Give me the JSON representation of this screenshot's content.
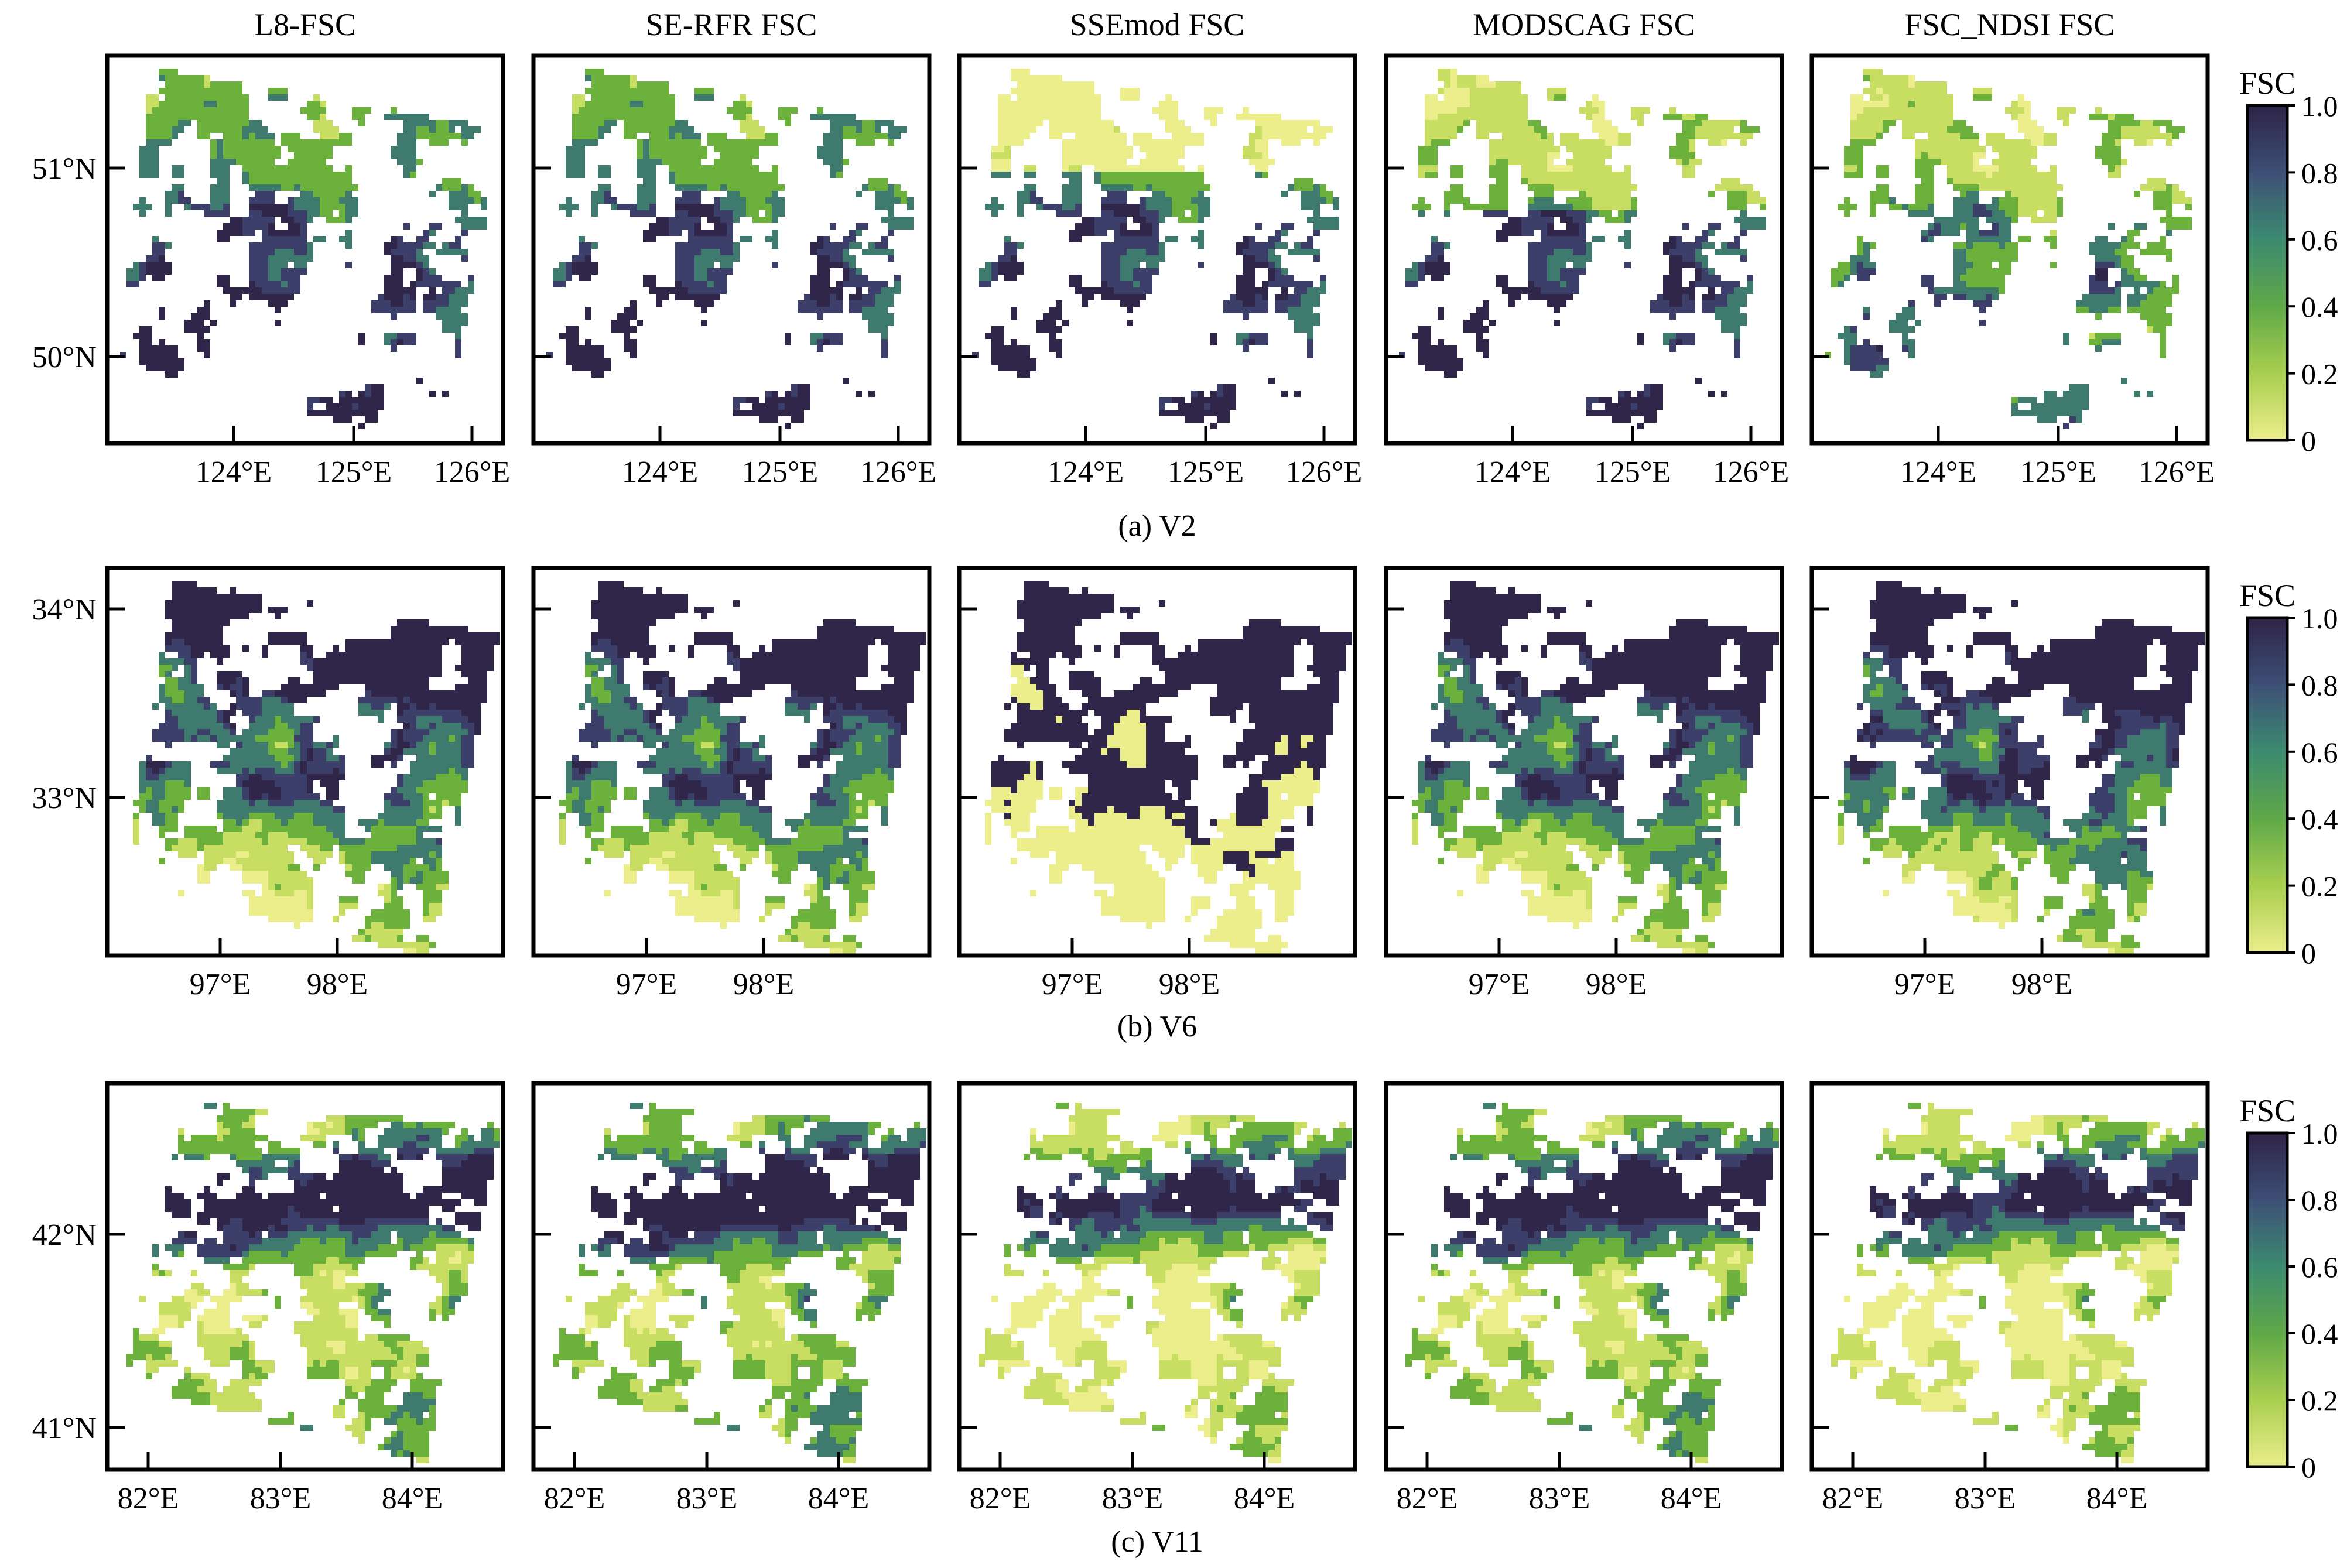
{
  "figure": {
    "column_titles": [
      "L8-FSC",
      "SE-RFR FSC",
      "SSEmod FSC",
      "MODSCAG FSC",
      "FSC_NDSI FSC"
    ],
    "colorbar": {
      "label": "FSC",
      "ticks": [
        "0",
        "0.2",
        "0.4",
        "0.6",
        "0.8",
        "1.0"
      ],
      "range": [
        0,
        1
      ],
      "colors": [
        "#ecee8c",
        "#6fb63f",
        "#3c9368",
        "#3e5f79",
        "#3b3864",
        "#2e2447"
      ]
    },
    "rows": [
      {
        "caption": "(a) V2",
        "lat_ticks": [
          "51°N",
          "50°N"
        ],
        "lon_ticks": [
          "124°E",
          "125°E",
          "126°E"
        ]
      },
      {
        "caption": "(b) V6",
        "lat_ticks": [
          "34°N",
          "33°N"
        ],
        "lon_ticks": [
          "97°E",
          "98°E"
        ]
      },
      {
        "caption": "(c) V11",
        "lat_ticks": [
          "42°N",
          "41°N"
        ],
        "lon_ticks": [
          "82°E",
          "83°E",
          "84°E"
        ]
      }
    ],
    "map_colors": {
      "snow_full": "#2f2649",
      "snow_high": "#3b3f6a",
      "snow_mid": "#3f7a6f",
      "snow_low": "#6cb13c",
      "snow_trace": "#c7de62",
      "snow_none": "#ecee8c",
      "no_data": "#ffffff"
    }
  }
}
